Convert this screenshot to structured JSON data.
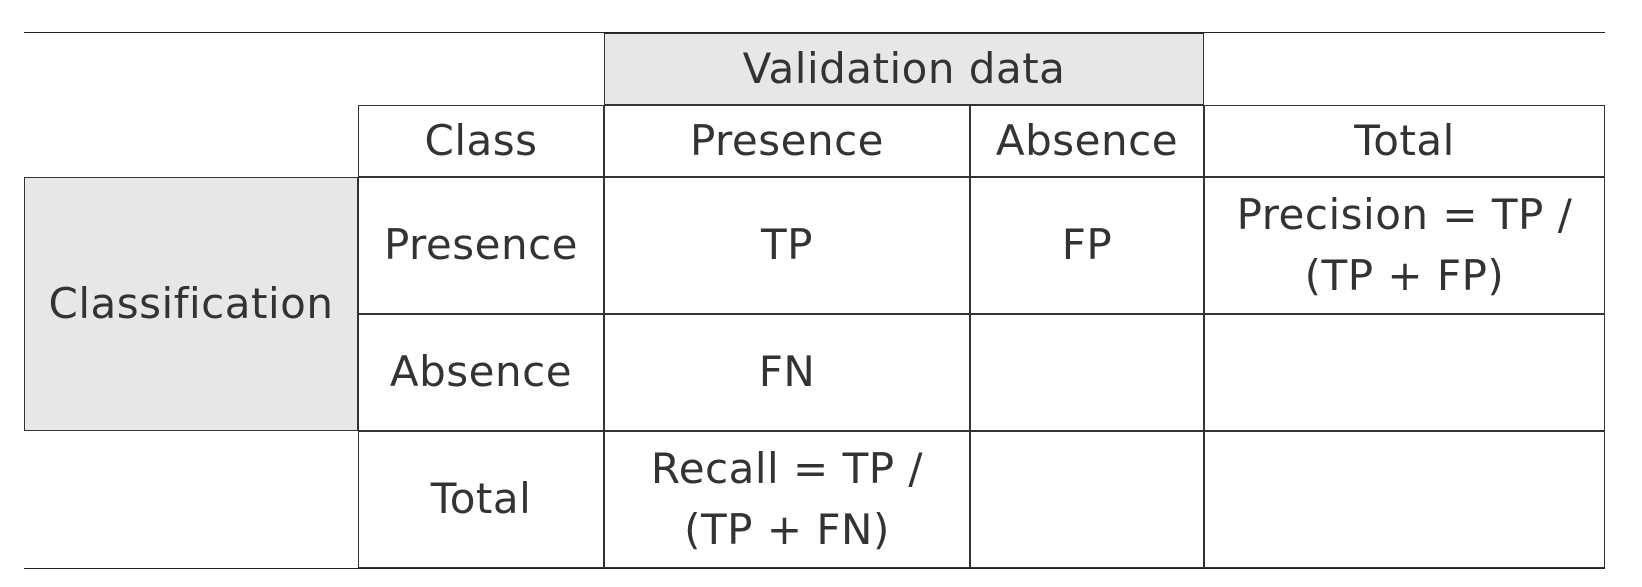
{
  "table": {
    "header_group": "Validation data",
    "column_headers": {
      "class": "Class",
      "presence": "Presence",
      "absence": "Absence",
      "total": "Total"
    },
    "row_group": "Classification",
    "rows": {
      "presence": {
        "label": "Presence",
        "presence_value": "TP",
        "absence_value": "FP",
        "total_line1": "Precision = TP /",
        "total_line2": "(TP + FP)"
      },
      "absence": {
        "label": "Absence",
        "presence_value": "FN",
        "absence_value": "",
        "total_value": ""
      },
      "total": {
        "label": "Total",
        "presence_line1": "Recall = TP /",
        "presence_line2": "(TP + FN)",
        "absence_value": "",
        "total_value": ""
      }
    }
  },
  "colors": {
    "shade": "#e8e7e8",
    "text": "#333333",
    "border": "#333333"
  }
}
